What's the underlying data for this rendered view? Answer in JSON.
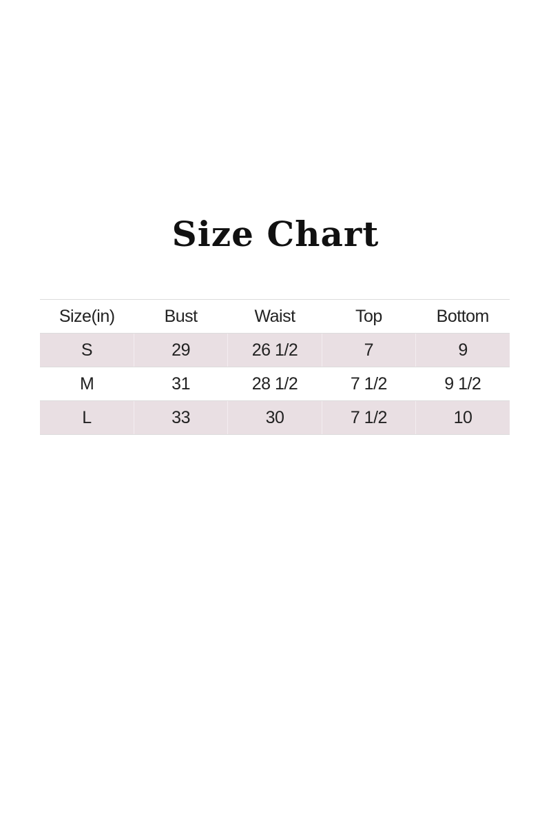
{
  "title": "Size Chart",
  "colors": {
    "row_shade": "#e9dfe3",
    "text": "#222222"
  },
  "table": {
    "headers": [
      "Size(in)",
      "Bust",
      "Waist",
      "Top",
      "Bottom"
    ],
    "rows": [
      [
        "S",
        "29",
        "26 1/2",
        "7",
        "9"
      ],
      [
        "M",
        "31",
        "28 1/2",
        "7 1/2",
        "9 1/2"
      ],
      [
        "L",
        "33",
        "30",
        "7 1/2",
        "10"
      ]
    ]
  }
}
